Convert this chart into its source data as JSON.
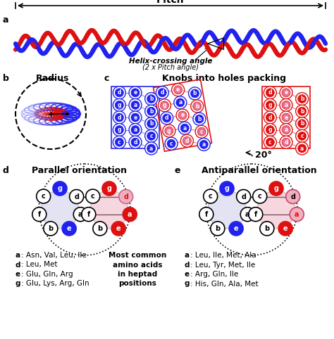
{
  "title_pitch": "Pitch",
  "helix_crossing_text": "Helix-crossing angle",
  "helix_crossing_sub": "(2 x Pitch angle)",
  "radius_text": "Radius",
  "knobs_text": "Knobs into holes packing",
  "parallel_text": "Parallel orientation",
  "antiparallel_text": "Antiparallel orientation",
  "angle_text": "20°",
  "legend_left": [
    "a: Asn, Val, Leu, Ile",
    "d: Leu, Met",
    "e: Glu, Gln, Arg",
    "g: Glu, Lys, Arg, Gln"
  ],
  "legend_mid": [
    "Most common",
    "amino acids",
    "in heptad",
    "positions"
  ],
  "legend_right": [
    "a: Leu, Ile, Met, Ala",
    "d: Leu, Tyr, Met, Ile",
    "e: Arg, Gln, Ile",
    "g: His, Gln, Ala, Met"
  ],
  "color_blue": "#2222ee",
  "color_red": "#dd1111",
  "color_pink_fill": "#f0b0c0",
  "color_lavender": "#c8c8e8",
  "color_white": "#ffffff",
  "color_black": "#000000"
}
